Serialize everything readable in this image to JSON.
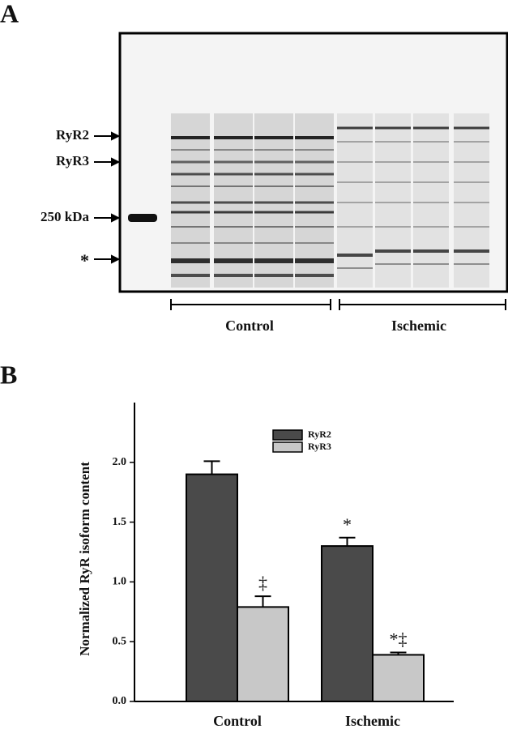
{
  "panel_a": {
    "label": "A",
    "markers": [
      "RyR2",
      "RyR3",
      "250 kDa",
      "*"
    ],
    "groups": [
      "Control",
      "Ischemic"
    ]
  },
  "chart_data": {
    "type": "bar",
    "panel_label": "B",
    "y_label": "Normalized RyR isoform content",
    "categories": [
      "Control",
      "Ischemic"
    ],
    "series": [
      {
        "name": "RyR2",
        "color": "#4a4a4a",
        "values": [
          1.9,
          1.3
        ],
        "errors": [
          0.11,
          0.07
        ],
        "annotations": [
          null,
          "*"
        ]
      },
      {
        "name": "RyR3",
        "color": "#c8c8c8",
        "values": [
          0.79,
          0.39
        ],
        "errors": [
          0.09,
          0.02
        ],
        "annotations": [
          "‡",
          "*‡"
        ]
      }
    ],
    "ylim": [
      0,
      2.5
    ],
    "yticks": [
      {
        "value": 0,
        "label": "0.0"
      },
      {
        "value": 0.5,
        "label": "0.5"
      },
      {
        "value": 1,
        "label": "1.0"
      },
      {
        "value": 1.5,
        "label": "1.5"
      },
      {
        "value": 2,
        "label": "2.0"
      }
    ],
    "legend": "top"
  }
}
